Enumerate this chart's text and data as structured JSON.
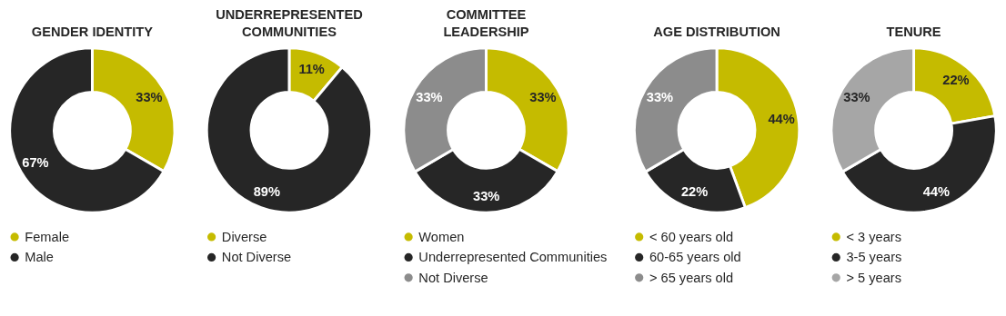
{
  "chart_data": [
    {
      "type": "donut",
      "title": "GENDER IDENTITY",
      "categories": [
        "Female",
        "Male"
      ],
      "values": [
        33.3,
        66.7
      ],
      "value_labels": [
        "33%",
        "67%"
      ],
      "colors": [
        "#c5bb00",
        "#262626"
      ],
      "legend": "bottom"
    },
    {
      "type": "donut",
      "title": "UNDERREPRESENTED\nCOMMUNITIES",
      "categories": [
        "Diverse",
        "Not Diverse"
      ],
      "values": [
        11.1,
        88.9
      ],
      "value_labels": [
        "11%",
        "89%"
      ],
      "colors": [
        "#c5bb00",
        "#262626"
      ],
      "legend": "bottom"
    },
    {
      "type": "donut",
      "title": "COMMITTEE\nLEADERSHIP",
      "categories": [
        "Women",
        "Underrepresented Communities",
        "Not Diverse"
      ],
      "values": [
        33.3,
        33.3,
        33.4
      ],
      "value_labels": [
        "33%",
        "33%",
        "33%"
      ],
      "colors": [
        "#c5bb00",
        "#262626",
        "#8c8c8c"
      ],
      "legend": "bottom"
    },
    {
      "type": "donut",
      "title": "AGE DISTRIBUTION",
      "categories": [
        "< 60 years old",
        "60-65 years old",
        "> 65 years old"
      ],
      "values": [
        44.4,
        22.2,
        33.4
      ],
      "value_labels": [
        "44%",
        "22%",
        "33%"
      ],
      "colors": [
        "#c5bb00",
        "#262626",
        "#8c8c8c"
      ],
      "legend": "bottom"
    },
    {
      "type": "donut",
      "title": "TENURE",
      "categories": [
        "< 3 years",
        "3-5 years",
        "> 5 years"
      ],
      "values": [
        22.2,
        44.4,
        33.4
      ],
      "value_labels": [
        "22%",
        "44%",
        "33%"
      ],
      "colors": [
        "#c5bb00",
        "#262626",
        "#a6a6a6"
      ],
      "legend": "bottom"
    }
  ]
}
